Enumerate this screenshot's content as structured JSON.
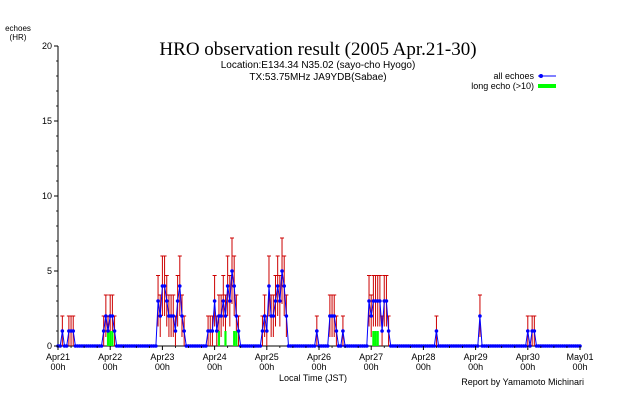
{
  "chart_data": {
    "type": "line",
    "title": "HRO observation result (2005 Apr.21-30)",
    "subtitle_lines": [
      "Location:E134.34 N35.02 (sayo-cho Hyogo)",
      "TX:53.75MHz JA9YDB(Sabae)"
    ],
    "ylabel_lines": [
      "echoes",
      "(HR)"
    ],
    "xlabel": "Local Time (JST)",
    "credit": "Report by Yamamoto Michinari",
    "ylim": [
      0,
      20
    ],
    "xlim_days": [
      0,
      10
    ],
    "y_ticks": [
      {
        "value": 0,
        "label": "0"
      },
      {
        "value": 5,
        "label": "5"
      },
      {
        "value": 10,
        "label": "10"
      },
      {
        "value": 15,
        "label": "15"
      },
      {
        "value": 20,
        "label": "20"
      }
    ],
    "x_ticks": [
      {
        "day": 0,
        "label": "Apr21",
        "sub": "00h"
      },
      {
        "day": 1,
        "label": "Apr22",
        "sub": "00h"
      },
      {
        "day": 2,
        "label": "Apr23",
        "sub": "00h"
      },
      {
        "day": 3,
        "label": "Apr24",
        "sub": "00h"
      },
      {
        "day": 4,
        "label": "Apr25",
        "sub": "00h"
      },
      {
        "day": 5,
        "label": "Apr26",
        "sub": "00h"
      },
      {
        "day": 6,
        "label": "Apr27",
        "sub": "00h"
      },
      {
        "day": 7,
        "label": "Apr28",
        "sub": "00h"
      },
      {
        "day": 8,
        "label": "Apr29",
        "sub": "00h"
      },
      {
        "day": 9,
        "label": "Apr30",
        "sub": "00h"
      },
      {
        "day": 10,
        "label": "May01",
        "sub": "00h"
      }
    ],
    "legend": {
      "placement": "top-right",
      "entries": [
        {
          "name": "all echoes",
          "color": "#0000ff",
          "style": "line-marker"
        },
        {
          "name": "long echo (>10)",
          "color": "#00ff00",
          "style": "bar"
        }
      ]
    },
    "colors": {
      "all_echoes": "#0000ff",
      "error_bars": "#cc0000",
      "long_echo": "#00ff00",
      "axis": "#000000"
    },
    "series": [
      {
        "name": "all echoes",
        "hour_step": 1,
        "values": [
          0,
          0,
          1,
          0,
          0,
          1,
          1,
          1,
          0,
          0,
          0,
          0,
          0,
          0,
          0,
          0,
          0,
          0,
          0,
          0,
          0,
          1,
          2,
          1,
          2,
          2,
          1,
          0,
          0,
          0,
          0,
          0,
          0,
          0,
          0,
          0,
          0,
          0,
          0,
          0,
          0,
          0,
          0,
          0,
          0,
          0,
          3,
          2,
          4,
          4,
          3,
          2,
          2,
          2,
          1,
          3,
          4,
          2,
          1,
          0,
          0,
          0,
          0,
          0,
          0,
          0,
          0,
          0,
          0,
          1,
          1,
          1,
          3,
          1,
          2,
          2,
          3,
          2,
          4,
          3,
          5,
          4,
          2,
          1,
          0,
          0,
          0,
          0,
          0,
          0,
          0,
          0,
          0,
          0,
          1,
          2,
          1,
          4,
          2,
          2,
          3,
          4,
          3,
          5,
          4,
          2,
          0,
          0,
          0,
          0,
          0,
          0,
          0,
          0,
          0,
          0,
          0,
          0,
          0,
          1,
          0,
          0,
          0,
          0,
          0,
          2,
          2,
          2,
          1,
          0,
          0,
          1,
          0,
          0,
          0,
          0,
          0,
          0,
          0,
          0,
          0,
          0,
          0,
          3,
          2,
          3,
          3,
          3,
          3,
          1,
          3,
          3,
          1,
          0,
          0,
          0,
          0,
          0,
          0,
          0,
          0,
          0,
          0,
          0,
          0,
          0,
          0,
          0,
          0,
          0,
          0,
          0,
          0,
          0,
          1,
          0,
          0,
          0,
          0,
          0,
          0,
          0,
          0,
          0,
          0,
          0,
          0,
          0,
          0,
          0,
          0,
          0,
          0,
          0,
          2,
          0,
          0,
          0,
          0,
          0,
          0,
          0,
          0,
          0,
          0,
          0,
          0,
          0,
          0,
          0,
          0,
          0,
          0,
          0,
          0,
          0,
          1,
          0,
          1,
          1,
          0,
          0,
          0,
          0,
          0,
          0,
          0,
          0,
          0,
          0,
          0,
          0,
          0,
          0,
          0,
          0,
          0,
          0,
          0,
          0,
          0
        ],
        "errors": [
          0,
          0,
          1,
          0,
          0,
          1,
          1,
          1,
          0,
          0,
          0,
          0,
          0,
          0,
          0,
          0,
          0,
          0,
          0,
          0,
          0,
          1,
          1.4,
          1,
          1.4,
          1.4,
          1,
          0,
          0,
          0,
          0,
          0,
          0,
          0,
          0,
          0,
          0,
          0,
          0,
          0,
          0,
          0,
          0,
          0,
          0,
          0,
          1.7,
          1.4,
          2,
          2,
          1.7,
          1.4,
          1.4,
          1.4,
          1,
          1.7,
          2,
          1.4,
          1,
          0,
          0,
          0,
          0,
          0,
          0,
          0,
          0,
          0,
          0,
          1,
          1,
          1,
          1.7,
          1,
          1.4,
          1.4,
          1.7,
          1.4,
          2,
          1.7,
          2.2,
          2,
          1.4,
          1,
          0,
          0,
          0,
          0,
          0,
          0,
          0,
          0,
          0,
          0,
          1,
          1.4,
          1,
          2,
          1.4,
          1.4,
          1.7,
          2,
          1.7,
          2.2,
          2,
          1.4,
          0,
          0,
          0,
          0,
          0,
          0,
          0,
          0,
          0,
          0,
          0,
          0,
          0,
          1,
          0,
          0,
          0,
          0,
          0,
          1.4,
          1.4,
          1.4,
          1,
          0,
          0,
          1,
          0,
          0,
          0,
          0,
          0,
          0,
          0,
          0,
          0,
          0,
          0,
          1.7,
          1.4,
          1.7,
          1.7,
          1.7,
          1.7,
          1,
          1.7,
          1.7,
          1,
          0,
          0,
          0,
          0,
          0,
          0,
          0,
          0,
          0,
          0,
          0,
          0,
          0,
          0,
          0,
          0,
          0,
          0,
          0,
          0,
          0,
          1,
          0,
          0,
          0,
          0,
          0,
          0,
          0,
          0,
          0,
          0,
          0,
          0,
          0,
          0,
          0,
          0,
          0,
          0,
          0,
          1.4,
          0,
          0,
          0,
          0,
          0,
          0,
          0,
          0,
          0,
          0,
          0,
          0,
          0,
          0,
          0,
          0,
          0,
          0,
          0,
          0,
          0,
          1,
          0,
          1,
          1,
          0,
          0,
          0,
          0,
          0,
          0,
          0,
          0,
          0,
          0,
          0,
          0,
          0,
          0,
          0,
          0,
          0,
          0,
          0,
          0,
          0
        ]
      },
      {
        "name": "long echo (>10)",
        "hour_step": 1,
        "values": [
          0,
          0,
          0,
          0,
          0,
          0,
          0,
          0,
          0,
          0,
          0,
          0,
          0,
          0,
          0,
          0,
          0,
          0,
          0,
          0,
          0,
          0,
          0,
          1,
          1,
          1,
          0,
          0,
          0,
          0,
          0,
          0,
          0,
          0,
          0,
          0,
          0,
          0,
          0,
          0,
          0,
          0,
          0,
          0,
          0,
          0,
          0,
          0,
          0,
          0,
          0,
          0,
          0,
          0,
          0,
          0,
          0,
          0,
          0,
          0,
          0,
          0,
          0,
          0,
          0,
          0,
          0,
          0,
          0,
          0,
          0,
          0,
          0,
          0,
          1,
          0,
          0,
          1,
          0,
          0,
          0,
          1,
          1,
          0,
          0,
          0,
          0,
          0,
          0,
          0,
          0,
          0,
          0,
          0,
          0,
          0,
          0,
          0,
          0,
          0,
          0,
          0,
          0,
          0,
          0,
          0,
          0,
          0,
          0,
          0,
          0,
          0,
          0,
          0,
          0,
          0,
          0,
          0,
          0,
          0,
          0,
          0,
          0,
          0,
          0,
          0,
          0,
          0,
          0,
          0,
          0,
          0,
          0,
          0,
          0,
          0,
          0,
          0,
          0,
          0,
          0,
          0,
          0,
          0,
          0,
          1,
          1,
          1,
          0,
          0,
          0,
          0,
          0,
          0,
          0,
          0,
          0,
          0,
          0,
          0,
          0,
          0,
          0,
          0,
          0,
          0,
          0,
          0,
          0,
          0,
          0,
          0,
          0,
          0,
          0,
          0,
          0,
          0,
          0,
          0,
          0,
          0,
          0,
          0,
          0,
          0,
          0,
          0,
          0,
          0,
          0,
          0,
          0,
          0,
          0,
          0,
          0,
          0,
          0,
          0,
          0,
          0,
          0,
          0,
          0,
          0,
          0,
          0,
          0,
          0,
          0,
          0,
          0,
          0,
          0,
          0,
          0,
          0,
          0,
          0,
          0,
          0,
          0,
          0,
          0,
          0,
          0,
          0,
          0,
          0,
          0,
          0,
          0,
          0,
          0,
          0,
          0,
          0,
          0,
          0,
          0
        ]
      }
    ]
  }
}
